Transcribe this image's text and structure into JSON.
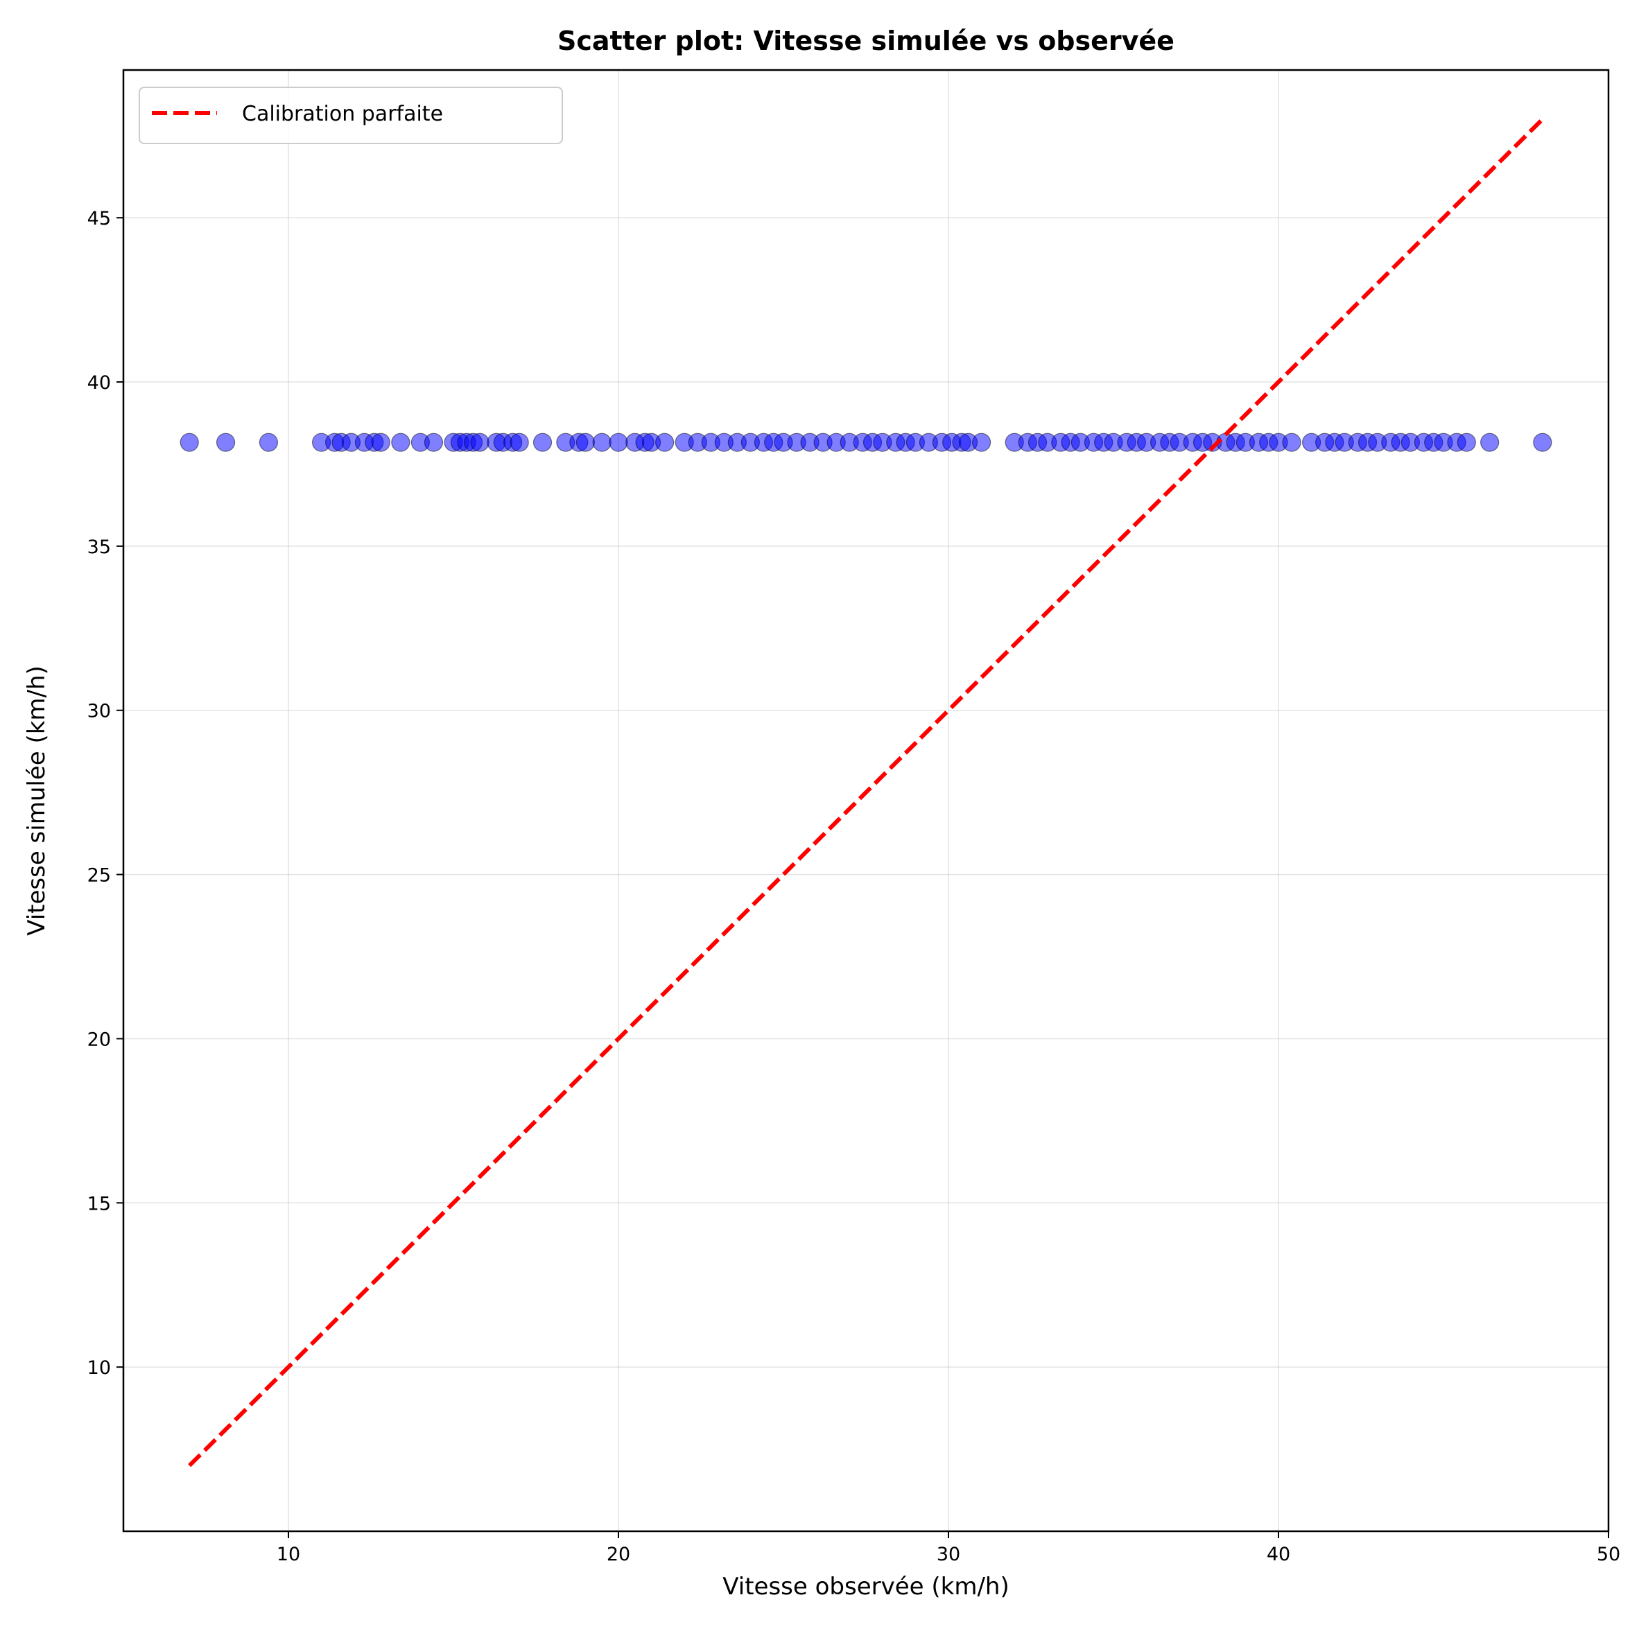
{
  "chart_data": {
    "type": "scatter",
    "title": "Scatter plot: Vitesse simulée vs observée",
    "xlabel": "Vitesse observée (km/h)",
    "ylabel": "Vitesse simulée (km/h)",
    "xlim": [
      5,
      50
    ],
    "ylim": [
      5,
      49.5
    ],
    "xticks": [
      10,
      20,
      30,
      40,
      50
    ],
    "yticks": [
      10,
      15,
      20,
      25,
      30,
      35,
      40,
      45
    ],
    "grid": true,
    "legend_position": "upper-left",
    "legend": [
      {
        "label": "Calibration parfaite",
        "style": "dashed",
        "color": "#ff0000"
      }
    ],
    "reference_line": {
      "name": "Calibration parfaite",
      "x": [
        7.0,
        48.0
      ],
      "y": [
        7.0,
        48.0
      ],
      "color": "#ff0000",
      "style": "dashed"
    },
    "scatter": {
      "color": "#0000ff",
      "edge_color": "#000000",
      "alpha": 0.5,
      "y_constant": 38.16,
      "x": [
        7.0,
        8.1,
        9.4,
        11.0,
        11.4,
        11.6,
        11.9,
        12.3,
        12.6,
        12.8,
        13.4,
        14.0,
        14.4,
        15.0,
        15.2,
        15.4,
        15.6,
        15.8,
        16.3,
        16.5,
        16.8,
        17.0,
        17.7,
        18.4,
        18.8,
        19.0,
        19.5,
        20.0,
        20.5,
        20.8,
        21.0,
        21.4,
        22.0,
        22.4,
        22.8,
        23.2,
        23.6,
        24.0,
        24.4,
        24.7,
        25.0,
        25.4,
        25.8,
        26.2,
        26.6,
        27.0,
        27.4,
        27.7,
        28.0,
        28.4,
        28.7,
        29.0,
        29.4,
        29.8,
        30.1,
        30.4,
        30.6,
        31.0,
        32.0,
        32.4,
        32.7,
        33.0,
        33.4,
        33.7,
        34.0,
        34.4,
        34.7,
        35.0,
        35.4,
        35.7,
        36.0,
        36.4,
        36.7,
        37.0,
        37.4,
        37.7,
        38.0,
        38.4,
        38.7,
        39.0,
        39.4,
        39.7,
        40.0,
        40.4,
        41.0,
        41.4,
        41.7,
        42.0,
        42.4,
        42.7,
        43.0,
        43.4,
        43.7,
        44.0,
        44.4,
        44.7,
        45.0,
        45.4,
        45.7,
        46.4,
        48.0
      ]
    }
  }
}
